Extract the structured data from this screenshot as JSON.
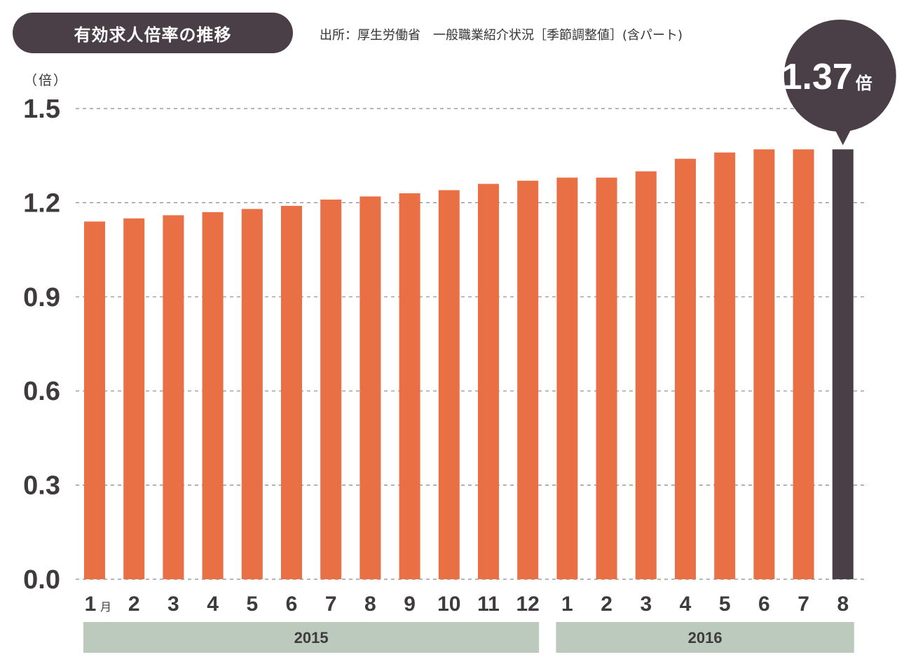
{
  "header": {
    "title": "有効求人倍率の推移",
    "source": "出所：厚生労働省　一般職業紹介状況［季節調整値］(含パート)"
  },
  "chart_data": {
    "type": "bar",
    "unit_label": "（倍）",
    "ylim": [
      0,
      1.5
    ],
    "yticks": [
      "0.0",
      "0.3",
      "0.6",
      "0.9",
      "1.2",
      "1.5"
    ],
    "grid": true,
    "categories": [
      "1",
      "2",
      "3",
      "4",
      "5",
      "6",
      "7",
      "8",
      "9",
      "10",
      "11",
      "12",
      "1",
      "2",
      "3",
      "4",
      "5",
      "6",
      "7",
      "8"
    ],
    "first_month_suffix": "月",
    "values": [
      1.14,
      1.15,
      1.16,
      1.17,
      1.18,
      1.19,
      1.21,
      1.22,
      1.23,
      1.24,
      1.26,
      1.27,
      1.28,
      1.28,
      1.3,
      1.34,
      1.36,
      1.37,
      1.37,
      1.37
    ],
    "years": [
      {
        "label": "2015",
        "start": 0,
        "end": 11
      },
      {
        "label": "2016",
        "start": 12,
        "end": 19
      }
    ],
    "highlight_index": 19,
    "callout": {
      "value": "1.37",
      "unit": "倍"
    }
  },
  "colors": {
    "bar": "#e87044",
    "highlight": "#4a3f47",
    "year_band": "#bccabd",
    "grid": "#8a8a8a",
    "title_bg": "#4a3f47"
  }
}
